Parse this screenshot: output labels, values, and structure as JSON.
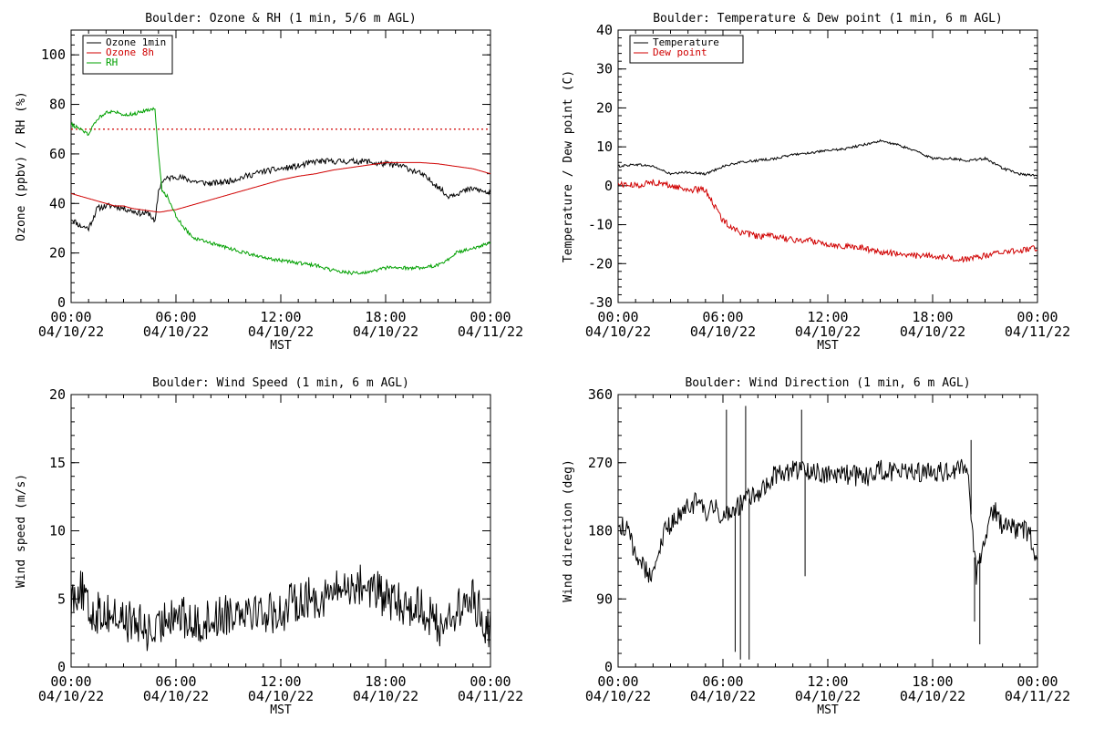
{
  "chart_data": [
    {
      "type": "line",
      "title": "Boulder: Ozone & RH (1 min, 5/6 m AGL)",
      "xlabel": "MST",
      "ylabel": "Ozone (ppbv) / RH (%)",
      "ylim": [
        0,
        110
      ],
      "yticks": [
        "0",
        "20",
        "40",
        "60",
        "80",
        "100"
      ],
      "xticks": [
        {
          "time": "00:00",
          "date": "04/10/22"
        },
        {
          "time": "06:00",
          "date": "04/10/22"
        },
        {
          "time": "12:00",
          "date": "04/10/22"
        },
        {
          "time": "18:00",
          "date": "04/10/22"
        },
        {
          "time": "00:00",
          "date": "04/11/22"
        }
      ],
      "x_hours": [
        0,
        0.5,
        1,
        1.5,
        2,
        2.5,
        3,
        3.5,
        4,
        4.5,
        4.8,
        5,
        5.2,
        5.5,
        6,
        6.5,
        7,
        8,
        9,
        10,
        11,
        12,
        13,
        14,
        15,
        16,
        17,
        17.5,
        18,
        19,
        20,
        21,
        21.5,
        22,
        23,
        24
      ],
      "reference_line": {
        "value": 70,
        "color": "#d00000",
        "style": "dotted"
      },
      "legend": {
        "placement": "top-left"
      },
      "series": [
        {
          "name": "Ozone 1min",
          "color": "#000000",
          "noise": 1.2,
          "values": [
            34,
            31,
            30,
            38,
            39,
            39,
            38,
            37,
            36,
            36,
            32,
            45,
            49,
            50,
            51,
            50,
            49,
            48,
            49,
            51,
            53,
            54,
            55,
            57,
            57,
            57,
            57,
            56,
            56,
            55,
            52,
            47,
            43,
            44,
            46,
            44
          ]
        },
        {
          "name": "Ozone 8h",
          "color": "#d00000",
          "noise": 0,
          "values": [
            44,
            43,
            42,
            41,
            40,
            39,
            39,
            38,
            37.5,
            37,
            36.7,
            36.5,
            36.6,
            37,
            37.5,
            38.5,
            39.5,
            41.5,
            43.5,
            45.5,
            47.5,
            49.5,
            51,
            52,
            53.5,
            54.5,
            55.5,
            56,
            56.5,
            56.5,
            56.5,
            56,
            55.5,
            55,
            54,
            52
          ]
        },
        {
          "name": "RH",
          "color": "#00a000",
          "noise": 0.7,
          "values": [
            72,
            70,
            68,
            74,
            77,
            77,
            76,
            76,
            77,
            78,
            78,
            60,
            45,
            43,
            35,
            30,
            26,
            24,
            22,
            20,
            18,
            17,
            16,
            15,
            13,
            12,
            12,
            13,
            14,
            14,
            14,
            15,
            17,
            20,
            22,
            24
          ]
        }
      ]
    },
    {
      "type": "line",
      "title": "Boulder: Temperature & Dew point (1 min, 6 m AGL)",
      "xlabel": "MST",
      "ylabel": "Temperature / Dew point (C)",
      "ylim": [
        -30,
        40
      ],
      "yticks": [
        "-30",
        "-20",
        "-10",
        "0",
        "10",
        "20",
        "30",
        "40"
      ],
      "xticks": [
        {
          "time": "00:00",
          "date": "04/10/22"
        },
        {
          "time": "06:00",
          "date": "04/10/22"
        },
        {
          "time": "12:00",
          "date": "04/10/22"
        },
        {
          "time": "18:00",
          "date": "04/10/22"
        },
        {
          "time": "00:00",
          "date": "04/11/22"
        }
      ],
      "x_hours": [
        0,
        1,
        2,
        3,
        4,
        5,
        5.5,
        6,
        7,
        8,
        9,
        10,
        11,
        12,
        13,
        14,
        15,
        16,
        17,
        18,
        19,
        20,
        21,
        22,
        23,
        24
      ],
      "legend": {
        "placement": "top-left"
      },
      "series": [
        {
          "name": "Temperature",
          "color": "#000000",
          "noise": 0.3,
          "values": [
            5,
            5.5,
            5,
            3,
            3.5,
            3,
            4,
            5,
            6,
            6.5,
            7,
            8,
            8.5,
            9,
            9.5,
            10.5,
            11.5,
            10.5,
            9,
            7,
            7,
            6.5,
            7,
            4.5,
            3,
            2.5
          ]
        },
        {
          "name": "Dew point",
          "color": "#d00000",
          "noise": 0.8,
          "values": [
            0.5,
            0,
            1,
            0,
            -1,
            -1,
            -5,
            -9,
            -12,
            -13,
            -13,
            -14,
            -14,
            -15,
            -15.5,
            -16,
            -17,
            -17.5,
            -18,
            -18,
            -18.5,
            -19,
            -18,
            -17,
            -16.5,
            -16
          ]
        }
      ]
    },
    {
      "type": "line",
      "title": "Boulder: Wind Speed (1 min, 6 m AGL)",
      "xlabel": "MST",
      "ylabel": "Wind speed (m/s)",
      "ylim": [
        0,
        20
      ],
      "yticks": [
        "0",
        "5",
        "10",
        "15",
        "20"
      ],
      "xticks": [
        {
          "time": "00:00",
          "date": "04/10/22"
        },
        {
          "time": "06:00",
          "date": "04/10/22"
        },
        {
          "time": "12:00",
          "date": "04/10/22"
        },
        {
          "time": "18:00",
          "date": "04/10/22"
        },
        {
          "time": "00:00",
          "date": "04/11/22"
        }
      ],
      "x_hours": [
        0,
        0.5,
        1,
        2,
        3,
        4,
        4.5,
        5,
        5.5,
        6,
        7,
        8,
        9,
        10,
        11,
        12,
        13,
        14,
        15,
        16,
        17,
        18,
        19,
        20,
        21,
        22,
        23,
        24
      ],
      "series": [
        {
          "name": "",
          "color": "#000000",
          "noise": 1.6,
          "values": [
            5,
            6,
            4,
            4,
            3.5,
            3,
            2.5,
            2.5,
            4,
            4,
            3,
            3.5,
            4,
            4.5,
            4,
            4,
            5,
            5,
            5.5,
            6,
            6,
            5,
            4.5,
            4.5,
            3,
            4,
            5,
            2.5
          ]
        }
      ]
    },
    {
      "type": "line",
      "title": "Boulder: Wind Direction (1 min, 6 m AGL)",
      "xlabel": "MST",
      "ylabel": "Wind direction (deg)",
      "ylim": [
        0,
        360
      ],
      "yticks": [
        "0",
        "90",
        "180",
        "270",
        "360"
      ],
      "xticks": [
        {
          "time": "00:00",
          "date": "04/10/22"
        },
        {
          "time": "06:00",
          "date": "04/10/22"
        },
        {
          "time": "12:00",
          "date": "04/10/22"
        },
        {
          "time": "18:00",
          "date": "04/10/22"
        },
        {
          "time": "00:00",
          "date": "04/11/22"
        }
      ],
      "x_hours": [
        0,
        0.5,
        1,
        1.5,
        2,
        2.5,
        3,
        3.5,
        4,
        4.5,
        5,
        5.5,
        6,
        7,
        8,
        9,
        10,
        11,
        12,
        13,
        14,
        15,
        16,
        17,
        18,
        19,
        20,
        20.3,
        20.5,
        21,
        21.5,
        22,
        23,
        23.5,
        24
      ],
      "spikes": [
        {
          "hour": 6.2,
          "value": 340
        },
        {
          "hour": 6.7,
          "value": 20
        },
        {
          "hour": 7.0,
          "value": 10
        },
        {
          "hour": 7.3,
          "value": 345
        },
        {
          "hour": 7.5,
          "value": 10
        },
        {
          "hour": 10.5,
          "value": 340
        },
        {
          "hour": 10.7,
          "value": 120
        },
        {
          "hour": 20.2,
          "value": 300
        },
        {
          "hour": 20.4,
          "value": 60
        },
        {
          "hour": 20.7,
          "value": 30
        }
      ],
      "series": [
        {
          "name": "",
          "color": "#000000",
          "noise": 14,
          "values": [
            190,
            180,
            150,
            130,
            120,
            170,
            190,
            200,
            210,
            220,
            200,
            210,
            200,
            215,
            230,
            255,
            260,
            260,
            255,
            255,
            250,
            260,
            255,
            260,
            255,
            260,
            265,
            170,
            120,
            175,
            210,
            185,
            180,
            180,
            140
          ]
        }
      ]
    }
  ]
}
